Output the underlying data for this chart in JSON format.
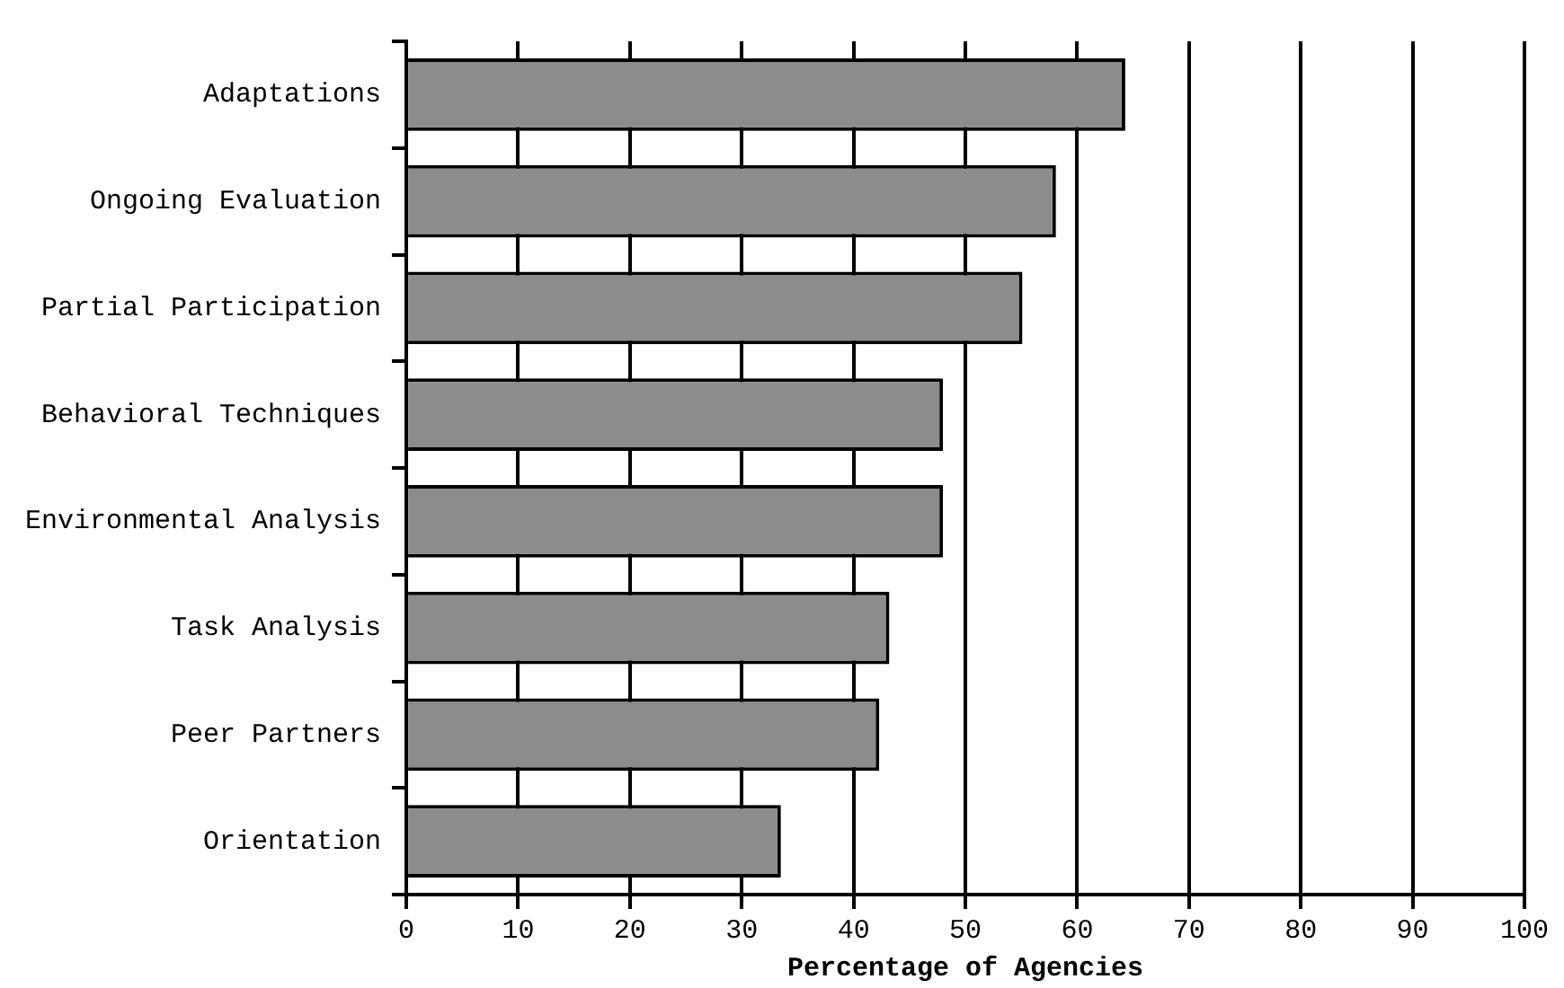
{
  "chart_data": {
    "type": "bar",
    "orientation": "horizontal",
    "xlabel": "Percentage of Agencies",
    "categories": [
      "Adaptations",
      "Ongoing Evaluation",
      "Partial Participation",
      "Behavioral Techniques",
      "Environmental Analysis",
      "Task Analysis",
      "Peer Partners",
      "Orientation"
    ],
    "values": [
      64.3,
      58.1,
      55.1,
      48,
      48,
      43.2,
      42.3,
      33.5
    ],
    "color": "#8c8c8c",
    "xlim": [
      0,
      100
    ],
    "xticks": [
      0,
      10,
      20,
      30,
      40,
      50,
      60,
      70,
      80,
      90,
      100
    ],
    "grid": "x"
  }
}
